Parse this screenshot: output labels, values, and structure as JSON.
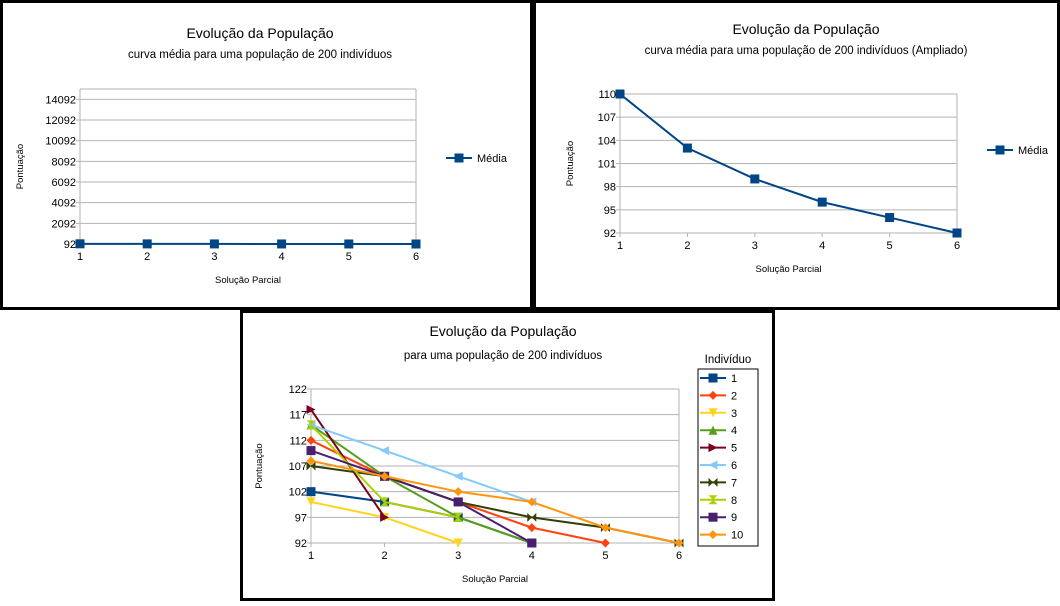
{
  "chart_data": [
    {
      "type": "line",
      "title": "Evolução da População",
      "subtitle": "curva média para uma população de 200 indivíduos",
      "xlabel": "Solução Parcial",
      "ylabel": "Pontuação",
      "x": [
        1,
        2,
        3,
        4,
        5,
        6
      ],
      "xlim": [
        1,
        6
      ],
      "ylim": [
        92,
        15092
      ],
      "yticks": [
        92,
        2092,
        4092,
        6092,
        8092,
        10092,
        12092,
        14092
      ],
      "grid": true,
      "legend": "right",
      "series": [
        {
          "name": "Média",
          "values": [
            110,
            103,
            99,
            96,
            94,
            92
          ],
          "color": "#004586",
          "marker": "square"
        }
      ]
    },
    {
      "type": "line",
      "title": "Evolução da População",
      "subtitle": "curva média para uma população de 200 indivíduos (Ampliado)",
      "xlabel": "Solução Parcial",
      "ylabel": "Pontuação",
      "x": [
        1,
        2,
        3,
        4,
        5,
        6
      ],
      "xlim": [
        1,
        6
      ],
      "ylim": [
        92,
        110
      ],
      "yticks": [
        92,
        95,
        98,
        101,
        104,
        107,
        110
      ],
      "grid": true,
      "legend": "right",
      "series": [
        {
          "name": "Média",
          "values": [
            110.2,
            103,
            99,
            96,
            94,
            92
          ],
          "color": "#004586",
          "marker": "square"
        }
      ]
    },
    {
      "type": "line",
      "title": "Evolução da População",
      "subtitle": "para uma população de 200 indivíduos",
      "xlabel": "Solução Parcial",
      "ylabel": "Pontuação",
      "x": [
        1,
        2,
        3,
        4,
        5,
        6
      ],
      "xlim": [
        1,
        6
      ],
      "ylim": [
        92,
        122
      ],
      "yticks": [
        92,
        97,
        102,
        107,
        112,
        117,
        122
      ],
      "grid": true,
      "legend": "right",
      "legend_title": "Indivíduo",
      "series": [
        {
          "name": "1",
          "color": "#004586",
          "marker": "square",
          "points": [
            [
              1,
              102
            ],
            [
              2,
              100
            ],
            [
              3,
              97
            ],
            [
              4,
              92
            ]
          ]
        },
        {
          "name": "2",
          "color": "#ff420e",
          "marker": "diamond",
          "points": [
            [
              1,
              112
            ],
            [
              2,
              105
            ],
            [
              3,
              100
            ],
            [
              4,
              95
            ],
            [
              5,
              92
            ]
          ]
        },
        {
          "name": "3",
          "color": "#ffd320",
          "marker": "tri-down",
          "points": [
            [
              1,
              100
            ],
            [
              2,
              97
            ],
            [
              3,
              92
            ]
          ]
        },
        {
          "name": "4",
          "color": "#579d1c",
          "marker": "tri-up",
          "points": [
            [
              1,
              115
            ],
            [
              2,
              105
            ],
            [
              3,
              97
            ],
            [
              4,
              92
            ]
          ]
        },
        {
          "name": "5",
          "color": "#7e0021",
          "marker": "tri-right",
          "points": [
            [
              1,
              118
            ],
            [
              2,
              97
            ]
          ]
        },
        {
          "name": "6",
          "color": "#83caff",
          "marker": "tri-left",
          "points": [
            [
              1,
              115
            ],
            [
              2,
              110
            ],
            [
              3,
              105
            ],
            [
              4,
              100
            ]
          ]
        },
        {
          "name": "7",
          "color": "#314004",
          "marker": "bowtie",
          "points": [
            [
              1,
              107
            ],
            [
              2,
              105
            ],
            [
              3,
              100
            ],
            [
              4,
              97
            ],
            [
              5,
              95
            ],
            [
              6,
              92
            ]
          ]
        },
        {
          "name": "8",
          "color": "#aecf00",
          "marker": "hourglass",
          "points": [
            [
              1,
              115
            ],
            [
              2,
              100
            ],
            [
              3,
              97
            ]
          ]
        },
        {
          "name": "9",
          "color": "#4b1f6f",
          "marker": "square",
          "points": [
            [
              1,
              110
            ],
            [
              2,
              105
            ],
            [
              3,
              100
            ],
            [
              4,
              92
            ]
          ]
        },
        {
          "name": "10",
          "color": "#ff950e",
          "marker": "diamond",
          "points": [
            [
              1,
              108
            ],
            [
              2,
              105
            ],
            [
              3,
              102
            ],
            [
              4,
              100
            ],
            [
              5,
              95
            ],
            [
              6,
              92
            ]
          ]
        }
      ]
    }
  ]
}
